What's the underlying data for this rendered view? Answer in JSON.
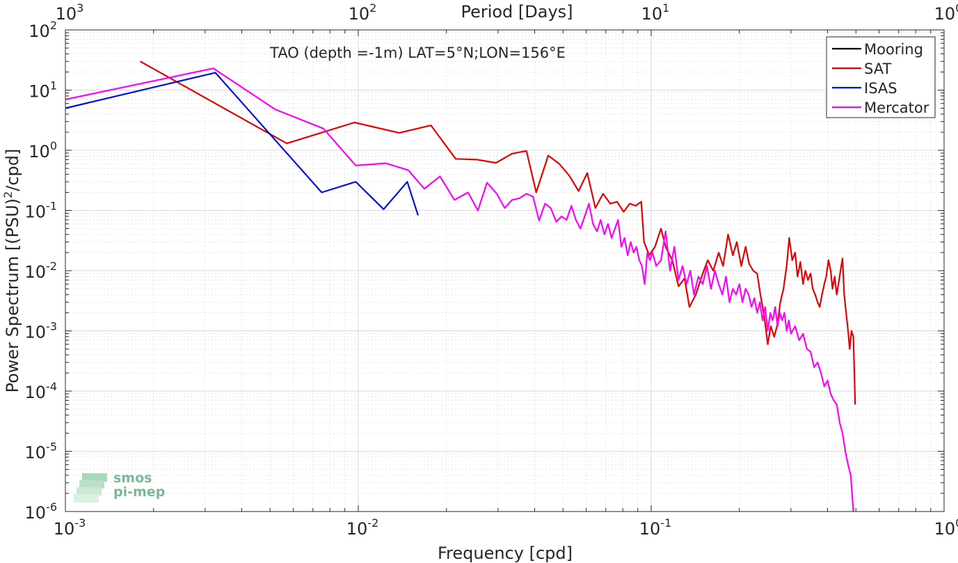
{
  "chart_data": {
    "type": "line",
    "title": "TAO (depth =-1m) LAT=5°N;LON=156°E",
    "xlabel": "Frequency [cpd]",
    "ylabel": "Power Spectrum [(PSU)",
    "ylabel_sup": "2",
    "ylabel_tail": "/cpd]",
    "top_xlabel": "Period [Days]",
    "x_scale": "log",
    "y_scale": "log",
    "xlim": [
      0.001,
      1
    ],
    "ylim": [
      1e-06,
      100
    ],
    "grid": true,
    "legend_position": "top-right",
    "x_ticks": [
      {
        "base": "10",
        "exp": "-3",
        "value": 0.001
      },
      {
        "base": "10",
        "exp": "-2",
        "value": 0.01
      },
      {
        "base": "10",
        "exp": "-1",
        "value": 0.1
      },
      {
        "base": "10",
        "exp": "0",
        "value": 1
      }
    ],
    "y_ticks": [
      {
        "base": "10",
        "exp": "-6",
        "value": 1e-06
      },
      {
        "base": "10",
        "exp": "-5",
        "value": 1e-05
      },
      {
        "base": "10",
        "exp": "-4",
        "value": 0.0001
      },
      {
        "base": "10",
        "exp": "-3",
        "value": 0.001
      },
      {
        "base": "10",
        "exp": "-2",
        "value": 0.01
      },
      {
        "base": "10",
        "exp": "-1",
        "value": 0.1
      },
      {
        "base": "10",
        "exp": "0",
        "value": 1
      },
      {
        "base": "10",
        "exp": "1",
        "value": 10
      },
      {
        "base": "10",
        "exp": "2",
        "value": 100
      }
    ],
    "top_ticks": [
      {
        "base": "10",
        "exp": "3",
        "value": 0.001
      },
      {
        "base": "10",
        "exp": "2",
        "value": 0.01
      },
      {
        "base": "10",
        "exp": "1",
        "value": 0.1
      },
      {
        "base": "10",
        "exp": "0",
        "value": 1
      }
    ],
    "series": [
      {
        "name": "Mooring",
        "color": "#000000",
        "points": []
      },
      {
        "name": "SAT",
        "color": "#e60000",
        "points": [
          [
            0.0018,
            30
          ],
          [
            0.0057,
            1.3
          ],
          [
            0.0097,
            2.9
          ],
          [
            0.0138,
            1.95
          ],
          [
            0.0177,
            2.6
          ],
          [
            0.0215,
            0.72
          ],
          [
            0.0255,
            0.7
          ],
          [
            0.0295,
            0.62
          ],
          [
            0.0335,
            0.88
          ],
          [
            0.0375,
            0.98
          ],
          [
            0.0405,
            0.2
          ],
          [
            0.0445,
            0.82
          ],
          [
            0.0485,
            0.6
          ],
          [
            0.0525,
            0.38
          ],
          [
            0.0565,
            0.21
          ],
          [
            0.0605,
            0.42
          ],
          [
            0.0645,
            0.11
          ],
          [
            0.0685,
            0.19
          ],
          [
            0.0725,
            0.13
          ],
          [
            0.0765,
            0.14
          ],
          [
            0.0805,
            0.095
          ],
          [
            0.0845,
            0.13
          ],
          [
            0.0885,
            0.12
          ],
          [
            0.0925,
            0.14
          ],
          [
            0.0945,
            0.03
          ],
          [
            0.0985,
            0.018
          ],
          [
            0.103,
            0.025
          ],
          [
            0.108,
            0.05
          ],
          [
            0.112,
            0.025
          ],
          [
            0.118,
            0.015
          ],
          [
            0.124,
            0.0055
          ],
          [
            0.13,
            0.0075
          ],
          [
            0.135,
            0.0025
          ],
          [
            0.142,
            0.004
          ],
          [
            0.15,
            0.009
          ],
          [
            0.156,
            0.015
          ],
          [
            0.163,
            0.01
          ],
          [
            0.17,
            0.02
          ],
          [
            0.176,
            0.012
          ],
          [
            0.183,
            0.04
          ],
          [
            0.19,
            0.018
          ],
          [
            0.196,
            0.03
          ],
          [
            0.203,
            0.012
          ],
          [
            0.21,
            0.025
          ],
          [
            0.216,
            0.013
          ],
          [
            0.223,
            0.01
          ],
          [
            0.23,
            0.009
          ],
          [
            0.236,
            0.004
          ],
          [
            0.243,
            0.0018
          ],
          [
            0.25,
            0.0006
          ],
          [
            0.256,
            0.0012
          ],
          [
            0.263,
            0.0008
          ],
          [
            0.27,
            0.0013
          ],
          [
            0.276,
            0.003
          ],
          [
            0.283,
            0.005
          ],
          [
            0.29,
            0.012
          ],
          [
            0.296,
            0.035
          ],
          [
            0.303,
            0.015
          ],
          [
            0.31,
            0.02
          ],
          [
            0.316,
            0.008
          ],
          [
            0.323,
            0.014
          ],
          [
            0.33,
            0.006
          ],
          [
            0.336,
            0.01
          ],
          [
            0.343,
            0.007
          ],
          [
            0.35,
            0.009
          ],
          [
            0.356,
            0.005
          ],
          [
            0.363,
            0.004
          ],
          [
            0.37,
            0.003
          ],
          [
            0.376,
            0.0025
          ],
          [
            0.383,
            0.004
          ],
          [
            0.39,
            0.006
          ],
          [
            0.396,
            0.008
          ],
          [
            0.403,
            0.015
          ],
          [
            0.41,
            0.01
          ],
          [
            0.416,
            0.005
          ],
          [
            0.423,
            0.008
          ],
          [
            0.43,
            0.004
          ],
          [
            0.436,
            0.006
          ],
          [
            0.443,
            0.01
          ],
          [
            0.45,
            0.016
          ],
          [
            0.456,
            0.004
          ],
          [
            0.463,
            0.002
          ],
          [
            0.47,
            0.001
          ],
          [
            0.476,
            0.0005
          ],
          [
            0.483,
            0.001
          ],
          [
            0.49,
            0.0008
          ],
          [
            0.497,
            6e-05
          ]
        ]
      },
      {
        "name": "ISAS",
        "color": "#0010e0",
        "points": [
          [
            0.001,
            5
          ],
          [
            0.00325,
            19.5
          ],
          [
            0.0075,
            0.2
          ],
          [
            0.0098,
            0.3
          ],
          [
            0.0122,
            0.105
          ],
          [
            0.0147,
            0.3
          ],
          [
            0.016,
            0.083
          ]
        ]
      },
      {
        "name": "Mercator",
        "color": "#ff00ff",
        "points": [
          [
            0.001,
            7
          ],
          [
            0.0032,
            23
          ],
          [
            0.0052,
            4.8
          ],
          [
            0.0076,
            2.3
          ],
          [
            0.0098,
            0.56
          ],
          [
            0.0124,
            0.61
          ],
          [
            0.0148,
            0.47
          ],
          [
            0.0168,
            0.23
          ],
          [
            0.019,
            0.37
          ],
          [
            0.0213,
            0.15
          ],
          [
            0.0237,
            0.2
          ],
          [
            0.0256,
            0.1
          ],
          [
            0.0275,
            0.29
          ],
          [
            0.0297,
            0.19
          ],
          [
            0.0316,
            0.11
          ],
          [
            0.0335,
            0.15
          ],
          [
            0.0355,
            0.16
          ],
          [
            0.0375,
            0.19
          ],
          [
            0.0395,
            0.17
          ],
          [
            0.0414,
            0.068
          ],
          [
            0.0434,
            0.13
          ],
          [
            0.0454,
            0.11
          ],
          [
            0.0474,
            0.065
          ],
          [
            0.0494,
            0.08
          ],
          [
            0.0514,
            0.07
          ],
          [
            0.0534,
            0.12
          ],
          [
            0.0553,
            0.07
          ],
          [
            0.0573,
            0.05
          ],
          [
            0.0593,
            0.08
          ],
          [
            0.0613,
            0.13
          ],
          [
            0.0633,
            0.06
          ],
          [
            0.0653,
            0.045
          ],
          [
            0.0672,
            0.07
          ],
          [
            0.0692,
            0.04
          ],
          [
            0.0712,
            0.06
          ],
          [
            0.0732,
            0.035
          ],
          [
            0.0752,
            0.05
          ],
          [
            0.0771,
            0.07
          ],
          [
            0.0791,
            0.025
          ],
          [
            0.0811,
            0.035
          ],
          [
            0.0831,
            0.018
          ],
          [
            0.0851,
            0.03
          ],
          [
            0.0871,
            0.02
          ],
          [
            0.089,
            0.025
          ],
          [
            0.091,
            0.015
          ],
          [
            0.093,
            0.012
          ],
          [
            0.095,
            0.006
          ],
          [
            0.097,
            0.02
          ],
          [
            0.099,
            0.015
          ],
          [
            0.101,
            0.02
          ],
          [
            0.104,
            0.012
          ],
          [
            0.108,
            0.015
          ],
          [
            0.112,
            0.045
          ],
          [
            0.116,
            0.01
          ],
          [
            0.12,
            0.025
          ],
          [
            0.124,
            0.007
          ],
          [
            0.128,
            0.012
          ],
          [
            0.132,
            0.006
          ],
          [
            0.136,
            0.01
          ],
          [
            0.14,
            0.004
          ],
          [
            0.145,
            0.008
          ],
          [
            0.15,
            0.006
          ],
          [
            0.155,
            0.012
          ],
          [
            0.16,
            0.005
          ],
          [
            0.165,
            0.01
          ],
          [
            0.17,
            0.006
          ],
          [
            0.175,
            0.004
          ],
          [
            0.18,
            0.008
          ],
          [
            0.185,
            0.003
          ],
          [
            0.19,
            0.005
          ],
          [
            0.195,
            0.004
          ],
          [
            0.2,
            0.006
          ],
          [
            0.205,
            0.003
          ],
          [
            0.21,
            0.005
          ],
          [
            0.215,
            0.004
          ],
          [
            0.22,
            0.0025
          ],
          [
            0.225,
            0.0035
          ],
          [
            0.23,
            0.002
          ],
          [
            0.235,
            0.003
          ],
          [
            0.24,
            0.0015
          ],
          [
            0.245,
            0.0025
          ],
          [
            0.25,
            0.001
          ],
          [
            0.255,
            0.002
          ],
          [
            0.26,
            0.0015
          ],
          [
            0.265,
            0.0025
          ],
          [
            0.27,
            0.0012
          ],
          [
            0.275,
            0.002
          ],
          [
            0.28,
            0.0015
          ],
          [
            0.285,
            0.002
          ],
          [
            0.29,
            0.001
          ],
          [
            0.295,
            0.0015
          ],
          [
            0.3,
            0.0009
          ],
          [
            0.31,
            0.0012
          ],
          [
            0.32,
            0.0007
          ],
          [
            0.33,
            0.0009
          ],
          [
            0.34,
            0.0005
          ],
          [
            0.35,
            0.00045
          ],
          [
            0.36,
            0.00025
          ],
          [
            0.37,
            0.0003
          ],
          [
            0.38,
            0.0002
          ],
          [
            0.39,
            0.00012
          ],
          [
            0.4,
            0.00015
          ],
          [
            0.41,
            9e-05
          ],
          [
            0.42,
            7e-05
          ],
          [
            0.43,
            6e-05
          ],
          [
            0.44,
            3e-05
          ],
          [
            0.45,
            2e-05
          ],
          [
            0.46,
            1e-05
          ],
          [
            0.47,
            6e-06
          ],
          [
            0.48,
            4e-06
          ],
          [
            0.485,
            2e-06
          ],
          [
            0.49,
            1e-06
          ]
        ]
      }
    ]
  },
  "logo": {
    "line1": "smos",
    "line2": "pi-mep"
  }
}
